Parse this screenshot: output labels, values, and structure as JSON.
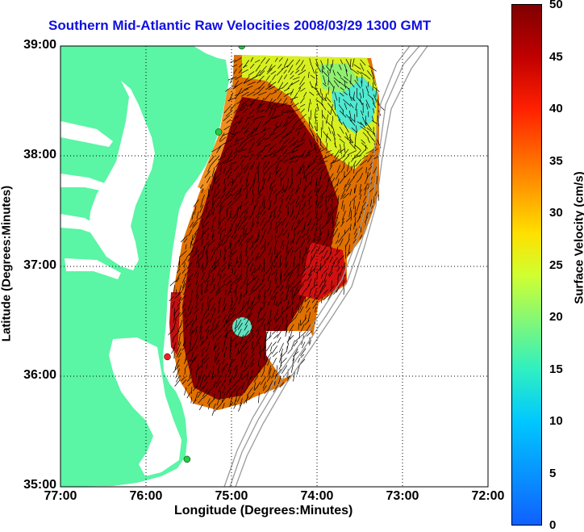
{
  "title": "Southern Mid-Atlantic Raw Velocities 2008/03/29 1300 GMT",
  "xaxis": {
    "label": "Longitude (Degrees:Minutes)",
    "ticks": [
      "77:00",
      "76:00",
      "75:00",
      "74:00",
      "73:00",
      "72:00"
    ]
  },
  "yaxis": {
    "label": "Latitude (Degrees:Minutes)",
    "ticks": [
      "39:00",
      "38:00",
      "37:00",
      "36:00",
      "35:00"
    ]
  },
  "colorbar": {
    "label": "Surface Velocity (cm/s)",
    "ticks": [
      "50",
      "45",
      "40",
      "35",
      "30",
      "25",
      "20",
      "15",
      "10",
      "5",
      "0"
    ],
    "range": [
      0,
      50
    ]
  },
  "colors": {
    "land": "#5af5a5",
    "title": "#1010e0",
    "bathymetry": "#9a9a9a",
    "station_green": "#22cc44",
    "station_red": "#ee2222"
  },
  "map_extent": {
    "lon_min": -77,
    "lon_max": -72,
    "lat_min": 35,
    "lat_max": 39
  },
  "stations": [
    {
      "color": "green",
      "lon": -74.88,
      "lat": 39.0
    },
    {
      "color": "green",
      "lon": -75.15,
      "lat": 38.22
    },
    {
      "color": "red",
      "lon": -75.75,
      "lat": 36.18
    },
    {
      "color": "green",
      "lon": -75.52,
      "lat": 35.25
    }
  ],
  "grid": true
}
